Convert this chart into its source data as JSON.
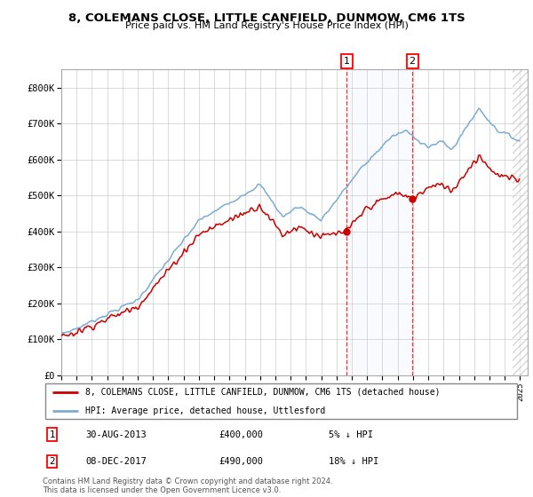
{
  "title": "8, COLEMANS CLOSE, LITTLE CANFIELD, DUNMOW, CM6 1TS",
  "subtitle": "Price paid vs. HM Land Registry's House Price Index (HPI)",
  "hpi_color": "#7aadd4",
  "price_color": "#cc0000",
  "shade_color": "#dce8f5",
  "ylim": [
    0,
    850000
  ],
  "yticks": [
    0,
    100000,
    200000,
    300000,
    400000,
    500000,
    600000,
    700000,
    800000
  ],
  "ytick_labels": [
    "£0",
    "£100K",
    "£200K",
    "£300K",
    "£400K",
    "£500K",
    "£600K",
    "£700K",
    "£800K"
  ],
  "xlim_start": 1995,
  "xlim_end": 2025.5,
  "t1_x": 2013.667,
  "t2_x": 2017.958,
  "t1_y": 400000,
  "t2_y": 490000,
  "transaction1": {
    "date": "30-AUG-2013",
    "price": 400000,
    "pct": "5%",
    "label": "1"
  },
  "transaction2": {
    "date": "08-DEC-2017",
    "price": 490000,
    "pct": "18%",
    "label": "2"
  },
  "legend_line1": "8, COLEMANS CLOSE, LITTLE CANFIELD, DUNMOW, CM6 1TS (detached house)",
  "legend_line2": "HPI: Average price, detached house, Uttlesford",
  "footer": "Contains HM Land Registry data © Crown copyright and database right 2024.\nThis data is licensed under the Open Government Licence v3.0."
}
